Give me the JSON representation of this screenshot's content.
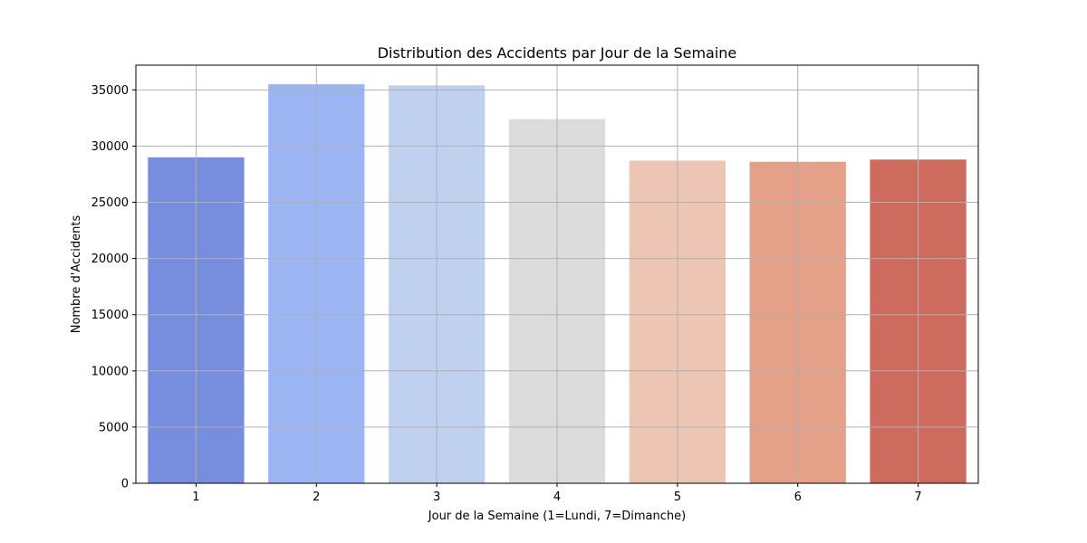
{
  "chart_data": {
    "type": "bar",
    "title": "Distribution des Accidents par Jour de la Semaine",
    "xlabel": "Jour de la Semaine (1=Lundi, 7=Dimanche)",
    "ylabel": "Nombre d'Accidents",
    "categories": [
      "1",
      "2",
      "3",
      "4",
      "5",
      "6",
      "7"
    ],
    "values": [
      29000,
      35500,
      35400,
      32400,
      28700,
      28600,
      28800
    ],
    "colors": [
      "#778ddd",
      "#9ab5f1",
      "#c0d1f0",
      "#dcdcdc",
      "#ecc5b4",
      "#e4a088",
      "#cc6b5e"
    ],
    "ylim": [
      0,
      37200
    ],
    "yticks": [
      0,
      5000,
      10000,
      15000,
      20000,
      25000,
      30000,
      35000
    ],
    "ytick_labels": [
      "0",
      "5000",
      "10000",
      "15000",
      "20000",
      "25000",
      "30000",
      "35000"
    ],
    "grid": true,
    "legend": "none"
  }
}
